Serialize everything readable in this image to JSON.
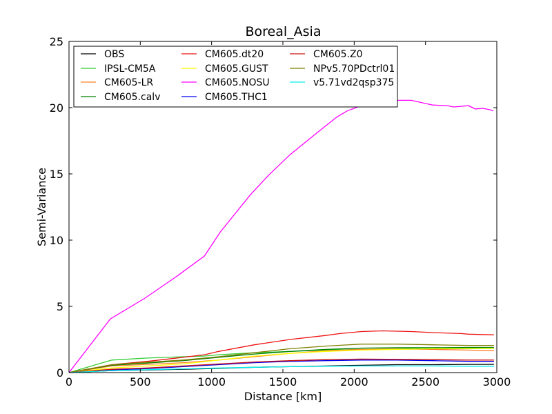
{
  "chart_data": {
    "type": "line",
    "title": "Boreal_Asia",
    "xlabel": "Distance [km]",
    "ylabel": "Semi-Variance",
    "xlim": [
      0,
      3000
    ],
    "ylim": [
      0,
      25
    ],
    "xticks": [
      0,
      500,
      1000,
      1500,
      2000,
      2500,
      3000
    ],
    "yticks": [
      0,
      5,
      10,
      15,
      20,
      25
    ],
    "grid": false,
    "legend_position": "upper-left",
    "legend_columns": 3,
    "series": [
      {
        "name": "OBS",
        "color": "#000000",
        "x": [
          0,
          300,
          550,
          800,
          1050,
          1300,
          1550,
          1800,
          2050,
          2300,
          2550,
          2800,
          2980
        ],
        "y": [
          0,
          0.15,
          0.2,
          0.25,
          0.32,
          0.4,
          0.45,
          0.5,
          0.55,
          0.6,
          0.6,
          0.62,
          0.62
        ]
      },
      {
        "name": "IPSL-CM5A",
        "color": "#33cc33",
        "x": [
          0,
          300,
          550,
          800,
          950,
          1050,
          1300,
          1550,
          1800,
          2050,
          2300,
          2550,
          2800,
          2980
        ],
        "y": [
          0,
          0.95,
          1.1,
          1.2,
          1.25,
          1.35,
          1.5,
          1.6,
          1.7,
          1.75,
          1.8,
          1.85,
          1.85,
          1.8
        ]
      },
      {
        "name": "CM605-LR",
        "color": "#ff7f27",
        "x": [
          0,
          300,
          550,
          800,
          1050,
          1300,
          1550,
          1800,
          2050,
          2300,
          2550,
          2800,
          2980
        ],
        "y": [
          0,
          0.5,
          0.62,
          0.75,
          0.95,
          1.2,
          1.45,
          1.65,
          1.75,
          1.78,
          1.75,
          1.7,
          1.65
        ]
      },
      {
        "name": "CM605.calv",
        "color": "#008000",
        "x": [
          0,
          300,
          550,
          800,
          1050,
          1300,
          1550,
          1800,
          2050,
          2300,
          2550,
          2800,
          2980
        ],
        "y": [
          0,
          0.55,
          0.72,
          0.9,
          1.15,
          1.4,
          1.6,
          1.75,
          1.85,
          1.88,
          1.88,
          1.9,
          1.9
        ]
      },
      {
        "name": "CM605.dt20",
        "color": "#ee1111",
        "x": [
          0,
          300,
          550,
          800,
          950,
          1050,
          1300,
          1550,
          1800,
          1900,
          2050,
          2200,
          2400,
          2600,
          2750,
          2800,
          2980
        ],
        "y": [
          0,
          0.6,
          0.85,
          1.15,
          1.35,
          1.6,
          2.1,
          2.5,
          2.8,
          2.95,
          3.1,
          3.15,
          3.1,
          3.0,
          2.95,
          2.9,
          2.85
        ]
      },
      {
        "name": "CM605.GUST",
        "color": "#ffff00",
        "x": [
          0,
          300,
          550,
          800,
          1050,
          1300,
          1550,
          1800,
          2050,
          2300,
          2550,
          2800,
          2980
        ],
        "y": [
          0,
          0.35,
          0.5,
          0.65,
          0.95,
          1.25,
          1.45,
          1.6,
          1.7,
          1.75,
          1.8,
          1.8,
          1.8
        ]
      },
      {
        "name": "CM605.NOSU",
        "color": "#ff00ff",
        "x": [
          0,
          290,
          530,
          760,
          950,
          1060,
          1270,
          1400,
          1550,
          1750,
          1880,
          1950,
          2050,
          2100,
          2200,
          2300,
          2400,
          2550,
          2650,
          2700,
          2750,
          2800,
          2850,
          2900,
          2950,
          2975
        ],
        "y": [
          0,
          4.05,
          5.6,
          7.3,
          8.8,
          10.6,
          13.4,
          14.9,
          16.45,
          18.2,
          19.3,
          19.75,
          20.15,
          20.3,
          20.5,
          20.55,
          20.55,
          20.2,
          20.15,
          20.05,
          20.1,
          20.15,
          19.9,
          19.95,
          19.85,
          19.75
        ]
      },
      {
        "name": "CM605.THC1",
        "color": "#0000ee",
        "x": [
          0,
          300,
          550,
          800,
          1050,
          1300,
          1550,
          1800,
          2050,
          2300,
          2550,
          2800,
          2980
        ],
        "y": [
          0,
          0.2,
          0.3,
          0.45,
          0.6,
          0.75,
          0.85,
          0.9,
          0.95,
          0.95,
          0.9,
          0.85,
          0.85
        ]
      },
      {
        "name": "CM605.Z0",
        "color": "#cc1111",
        "x": [
          0,
          300,
          550,
          800,
          1050,
          1300,
          1550,
          1800,
          2050,
          2300,
          2550,
          2800,
          2980
        ],
        "y": [
          0,
          0.25,
          0.35,
          0.5,
          0.65,
          0.8,
          0.9,
          0.98,
          1.02,
          1.0,
          0.98,
          0.95,
          0.95
        ]
      },
      {
        "name": "NPv5.70PDctrl01",
        "color": "#808000",
        "x": [
          0,
          300,
          550,
          800,
          1050,
          1300,
          1550,
          1800,
          2050,
          2300,
          2550,
          2800,
          2980
        ],
        "y": [
          0,
          0.6,
          0.78,
          0.95,
          1.2,
          1.5,
          1.8,
          2.0,
          2.15,
          2.15,
          2.1,
          2.05,
          2.05
        ]
      },
      {
        "name": "v5.71vd2qsp375",
        "color": "#00eeee",
        "x": [
          0,
          300,
          550,
          800,
          1050,
          1300,
          1550,
          1800,
          2050,
          2300,
          2550,
          2800,
          2980
        ],
        "y": [
          0,
          0.15,
          0.22,
          0.28,
          0.35,
          0.4,
          0.45,
          0.48,
          0.5,
          0.5,
          0.5,
          0.48,
          0.48
        ]
      }
    ]
  }
}
